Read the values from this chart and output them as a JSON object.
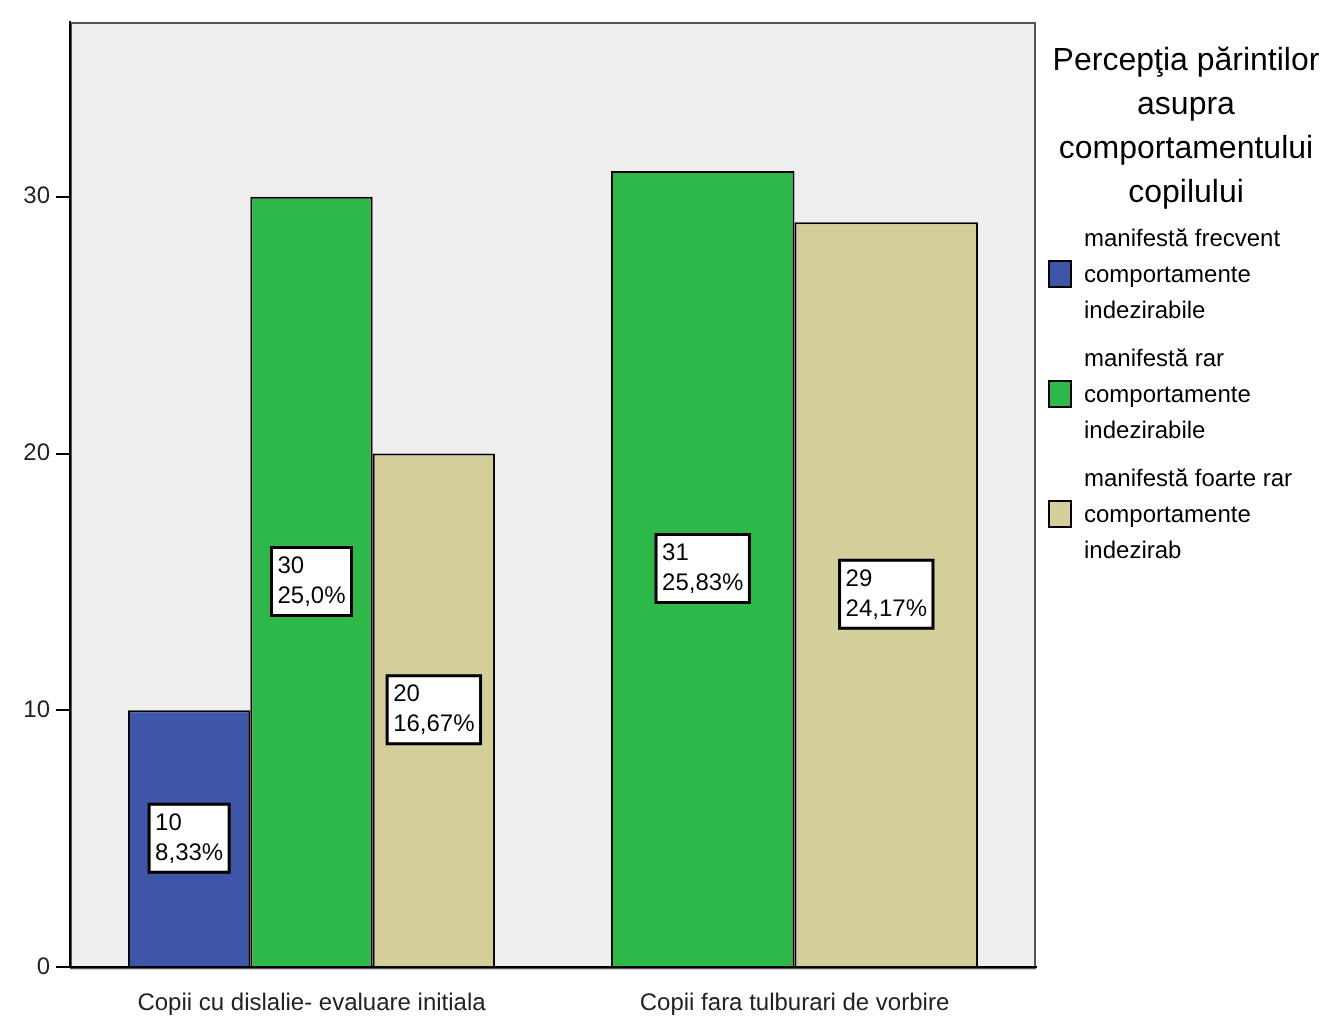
{
  "chart_data": {
    "type": "bar",
    "legend_title": "Percepţia părintilor asupra comportamentului copilului",
    "categories": [
      "Copii cu dislalie- evaluare initiala",
      "Copii fara tulburari de vorbire"
    ],
    "series": [
      {
        "name": "manifestă frecvent comportamente indezirabile",
        "color": "#3d56a8",
        "values": [
          10,
          null
        ],
        "value_labels": [
          "10\n8,33%",
          null
        ]
      },
      {
        "name": "manifestă rar comportamente indezirabile",
        "color": "#2fb84a",
        "values": [
          30,
          31
        ],
        "value_labels": [
          "30\n25,0%",
          "31\n25,83%"
        ]
      },
      {
        "name": "manifestă foarte rar comportamente indezirab",
        "color": "#d4cf9a",
        "values": [
          20,
          29
        ],
        "value_labels": [
          "20\n16,67%",
          "29\n24,17%"
        ]
      }
    ],
    "ylim": [
      0,
      36.8
    ],
    "yticks": [
      0,
      10,
      20,
      30
    ],
    "grid": false,
    "legend": "right"
  }
}
